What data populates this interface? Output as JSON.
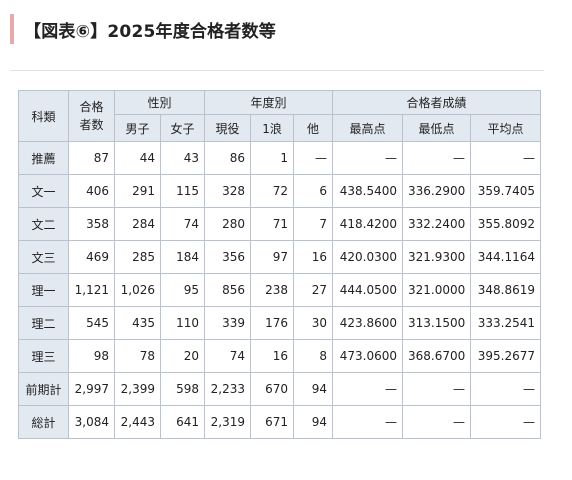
{
  "title": "【図表⑥】2025年度合格者数等",
  "table": {
    "headers": {
      "subject": "科類",
      "total_line1": "合格",
      "total_line2": "者数",
      "gender_group": "性別",
      "male": "男子",
      "female": "女子",
      "year_group": "年度別",
      "current": "現役",
      "ronin1": "1浪",
      "other": "他",
      "score_group": "合格者成績",
      "max": "最高点",
      "min": "最低点",
      "avg": "平均点"
    },
    "rows": [
      [
        "推薦",
        "87",
        "44",
        "43",
        "86",
        "1",
        "—",
        "—",
        "—",
        "—"
      ],
      [
        "文一",
        "406",
        "291",
        "115",
        "328",
        "72",
        "6",
        "438.5400",
        "336.2900",
        "359.7405"
      ],
      [
        "文二",
        "358",
        "284",
        "74",
        "280",
        "71",
        "7",
        "418.4200",
        "332.2400",
        "355.8092"
      ],
      [
        "文三",
        "469",
        "285",
        "184",
        "356",
        "97",
        "16",
        "420.0300",
        "321.9300",
        "344.1164"
      ],
      [
        "理一",
        "1,121",
        "1,026",
        "95",
        "856",
        "238",
        "27",
        "444.0500",
        "321.0000",
        "348.8619"
      ],
      [
        "理二",
        "545",
        "435",
        "110",
        "339",
        "176",
        "30",
        "423.8600",
        "313.1500",
        "333.2541"
      ],
      [
        "理三",
        "98",
        "78",
        "20",
        "74",
        "16",
        "8",
        "473.0600",
        "368.6700",
        "395.2677"
      ],
      [
        "前期計",
        "2,997",
        "2,399",
        "598",
        "2,233",
        "670",
        "94",
        "—",
        "—",
        "—"
      ],
      [
        "総計",
        "3,084",
        "2,443",
        "641",
        "2,319",
        "671",
        "94",
        "—",
        "—",
        "—"
      ]
    ]
  }
}
